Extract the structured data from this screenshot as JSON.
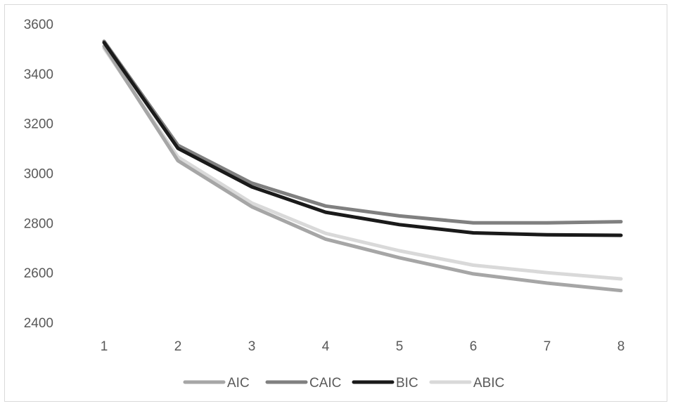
{
  "chart_data": {
    "type": "line",
    "title": "",
    "xlabel": "",
    "ylabel": "",
    "categories": [
      "1",
      "2",
      "3",
      "4",
      "5",
      "6",
      "7",
      "8"
    ],
    "y_ticks": [
      "2400",
      "2600",
      "2800",
      "3000",
      "3200",
      "3400",
      "3600"
    ],
    "ylim": [
      2400,
      3600
    ],
    "grid": false,
    "legend_position": "bottom",
    "series": [
      {
        "name": "AIC",
        "color": "#a6a6a6",
        "values": [
          3510,
          3050,
          2865,
          2735,
          2660,
          2595,
          2558,
          2528
        ]
      },
      {
        "name": "CAIC",
        "color": "#808080",
        "values": [
          3530,
          3112,
          2960,
          2868,
          2828,
          2800,
          2800,
          2805
        ]
      },
      {
        "name": "BIC",
        "color": "#1a1a1a",
        "values": [
          3525,
          3100,
          2945,
          2843,
          2793,
          2760,
          2752,
          2750
        ]
      },
      {
        "name": "ABIC",
        "color": "#d9d9d9",
        "values": [
          3502,
          3065,
          2880,
          2758,
          2688,
          2630,
          2600,
          2575
        ]
      }
    ]
  }
}
